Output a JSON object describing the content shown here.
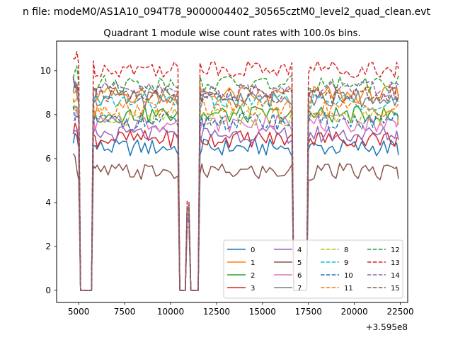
{
  "chart_data": {
    "type": "line",
    "suptitle": "n file: modeM0/AS1A10_094T78_9000004402_30565cztM0_level2_quad_clean.evt",
    "title": "Quadrant 1 module wise count rates with 100.0s bins.",
    "xlabel": "",
    "ylabel": "",
    "offset_text": "+3.595e8",
    "xlim": [
      3800,
      22900
    ],
    "ylim": [
      -0.55,
      11.35
    ],
    "xticks": [
      5000,
      7500,
      10000,
      12500,
      15000,
      17500,
      20000,
      22500
    ],
    "xtick_labels": [
      "5000",
      "7500",
      "10000",
      "12500",
      "15000",
      "17500",
      "20000",
      "22500"
    ],
    "yticks": [
      0,
      2,
      4,
      6,
      8,
      10
    ],
    "ytick_labels": [
      "0",
      "2",
      "4",
      "6",
      "8",
      "10"
    ],
    "legend_position": "lower-right",
    "legend_ncol": 4,
    "segments": [
      [
        4700,
        5000
      ],
      [
        5800,
        10400
      ],
      [
        11600,
        16600
      ],
      [
        17450,
        22350
      ]
    ],
    "gaps": [
      [
        5000,
        5800
      ],
      [
        10400,
        11600
      ],
      [
        16600,
        17450
      ]
    ],
    "sample_times": [
      4700,
      4800,
      4900,
      5000,
      5100,
      5200,
      5300,
      5400,
      5500,
      5600,
      5700,
      5800,
      5900,
      6000,
      6200,
      6400,
      6600,
      6800,
      7000,
      7200,
      7400,
      7600,
      7800,
      8000,
      8200,
      8400,
      8600,
      8800,
      9000,
      9200,
      9400,
      9600,
      9800,
      10000,
      10200,
      10400,
      10500,
      10600,
      10700,
      10800,
      10900,
      11000,
      11100,
      11200,
      11300,
      11400,
      11500,
      11600,
      11700,
      11800,
      12000,
      12200,
      12400,
      12600,
      12800,
      13000,
      13200,
      13400,
      13600,
      13800,
      14000,
      14200,
      14400,
      14600,
      14800,
      15000,
      15200,
      15400,
      15600,
      15800,
      16000,
      16200,
      16400,
      16600,
      16700,
      16800,
      16900,
      17000,
      17100,
      17200,
      17300,
      17400,
      17500,
      17600,
      17800,
      18000,
      18200,
      18400,
      18600,
      18800,
      19000,
      19200,
      19400,
      19600,
      19800,
      20000,
      20200,
      20400,
      20600,
      20800,
      21000,
      21200,
      21400,
      21600,
      21800,
      22000,
      22200,
      22300,
      22400
    ],
    "series": [
      {
        "name": "0",
        "color": "#1f77b4",
        "dash": "solid",
        "level": 6.5
      },
      {
        "name": "1",
        "color": "#ff7f0e",
        "dash": "solid",
        "level": 8.9
      },
      {
        "name": "2",
        "color": "#2ca02c",
        "dash": "solid",
        "level": 8.0
      },
      {
        "name": "3",
        "color": "#d62728",
        "dash": "solid",
        "level": 6.9
      },
      {
        "name": "4",
        "color": "#9467bd",
        "dash": "solid",
        "level": 7.1
      },
      {
        "name": "5",
        "color": "#8c564b",
        "dash": "solid",
        "level": 5.4
      },
      {
        "name": "6",
        "color": "#e377c2",
        "dash": "solid",
        "level": 7.6
      },
      {
        "name": "7",
        "color": "#7f7f7f",
        "dash": "solid",
        "level": 8.7
      },
      {
        "name": "8",
        "color": "#bcbd22",
        "dash": "dashed",
        "level": 7.9
      },
      {
        "name": "9",
        "color": "#17becf",
        "dash": "dashed",
        "level": 8.6
      },
      {
        "name": "10",
        "color": "#1f77b4",
        "dash": "dashed",
        "level": 7.7
      },
      {
        "name": "11",
        "color": "#ff7f0e",
        "dash": "dashed",
        "level": 8.3
      },
      {
        "name": "12",
        "color": "#2ca02c",
        "dash": "dashed",
        "level": 9.4
      },
      {
        "name": "13",
        "color": "#d62728",
        "dash": "dashed",
        "level": 10.1
      },
      {
        "name": "14",
        "color": "#9467bd",
        "dash": "dashed",
        "level": 9.1
      },
      {
        "name": "15",
        "color": "#8c564b",
        "dash": "dashed",
        "level": 8.9
      }
    ]
  }
}
